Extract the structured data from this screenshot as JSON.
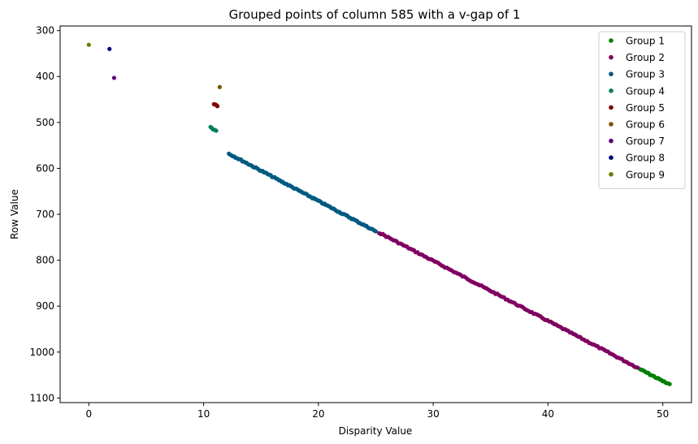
{
  "chart_data": {
    "type": "scatter",
    "title": "Grouped points of column 585 with a v-gap of 1",
    "xlabel": "Disparity Value",
    "ylabel": "Row Value",
    "xlim": [
      -2.5,
      52.5
    ],
    "ylim": [
      1110,
      290
    ],
    "y_inverted": true,
    "grid": false,
    "legend_position": "upper right",
    "x_ticks": [
      0,
      10,
      20,
      30,
      40,
      50
    ],
    "y_ticks": [
      300,
      400,
      500,
      600,
      700,
      800,
      900,
      1000,
      1100
    ],
    "series": [
      {
        "name": "Group 1",
        "color": "#008000",
        "segments": [
          {
            "x0": 48.0,
            "y0": 1037,
            "x1": 50.6,
            "y1": 1071,
            "n": 22
          }
        ]
      },
      {
        "name": "Group 2",
        "color": "#800060",
        "segments": [
          {
            "x0": 25.3,
            "y0": 740,
            "x1": 47.8,
            "y1": 1034,
            "n": 150
          }
        ]
      },
      {
        "name": "Group 3",
        "color": "#005a80",
        "segments": [
          {
            "x0": 12.2,
            "y0": 568,
            "x1": 25.0,
            "y1": 737,
            "n": 110
          }
        ]
      },
      {
        "name": "Group 4",
        "color": "#008060",
        "segments": [
          {
            "x0": 10.6,
            "y0": 511,
            "x1": 11.1,
            "y1": 518,
            "n": 6
          }
        ]
      },
      {
        "name": "Group 5",
        "color": "#800000",
        "segments": [
          {
            "x0": 10.9,
            "y0": 460,
            "x1": 11.2,
            "y1": 465,
            "n": 5
          }
        ]
      },
      {
        "name": "Group 6",
        "color": "#805000",
        "points": [
          [
            11.4,
            423
          ]
        ]
      },
      {
        "name": "Group 7",
        "color": "#600080",
        "points": [
          [
            2.2,
            403
          ]
        ]
      },
      {
        "name": "Group 8",
        "color": "#000080",
        "points": [
          [
            1.8,
            340
          ]
        ]
      },
      {
        "name": "Group 9",
        "color": "#608000",
        "points": [
          [
            0.0,
            331
          ]
        ]
      }
    ]
  }
}
